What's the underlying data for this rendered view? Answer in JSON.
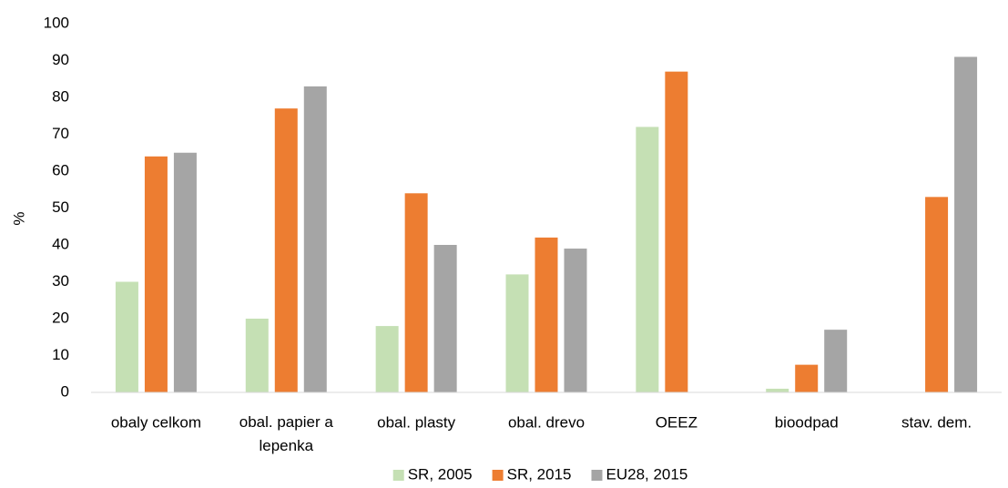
{
  "chart_data": {
    "type": "bar",
    "y_label": "%",
    "categories": [
      "obaly celkom",
      "obal. papier a lepenka",
      "obal. plasty",
      "obal. drevo",
      "OEEZ",
      "bioodpad",
      "stav. dem."
    ],
    "series": [
      {
        "name": "SR, 2005",
        "color": "#c5e0b4",
        "values": [
          30,
          20,
          18,
          32,
          72,
          1,
          null
        ]
      },
      {
        "name": "SR, 2015",
        "color": "#ed7d31",
        "values": [
          64,
          77,
          54,
          42,
          87,
          7.5,
          53
        ]
      },
      {
        "name": "EU28, 2015",
        "color": "#a5a5a5",
        "values": [
          65,
          83,
          40,
          39,
          null,
          17,
          91
        ]
      }
    ],
    "ylim": [
      0,
      100
    ],
    "yticks": [
      0,
      10,
      20,
      30,
      40,
      50,
      60,
      70,
      80,
      90,
      100
    ],
    "grid": false,
    "legend": "bottom"
  }
}
